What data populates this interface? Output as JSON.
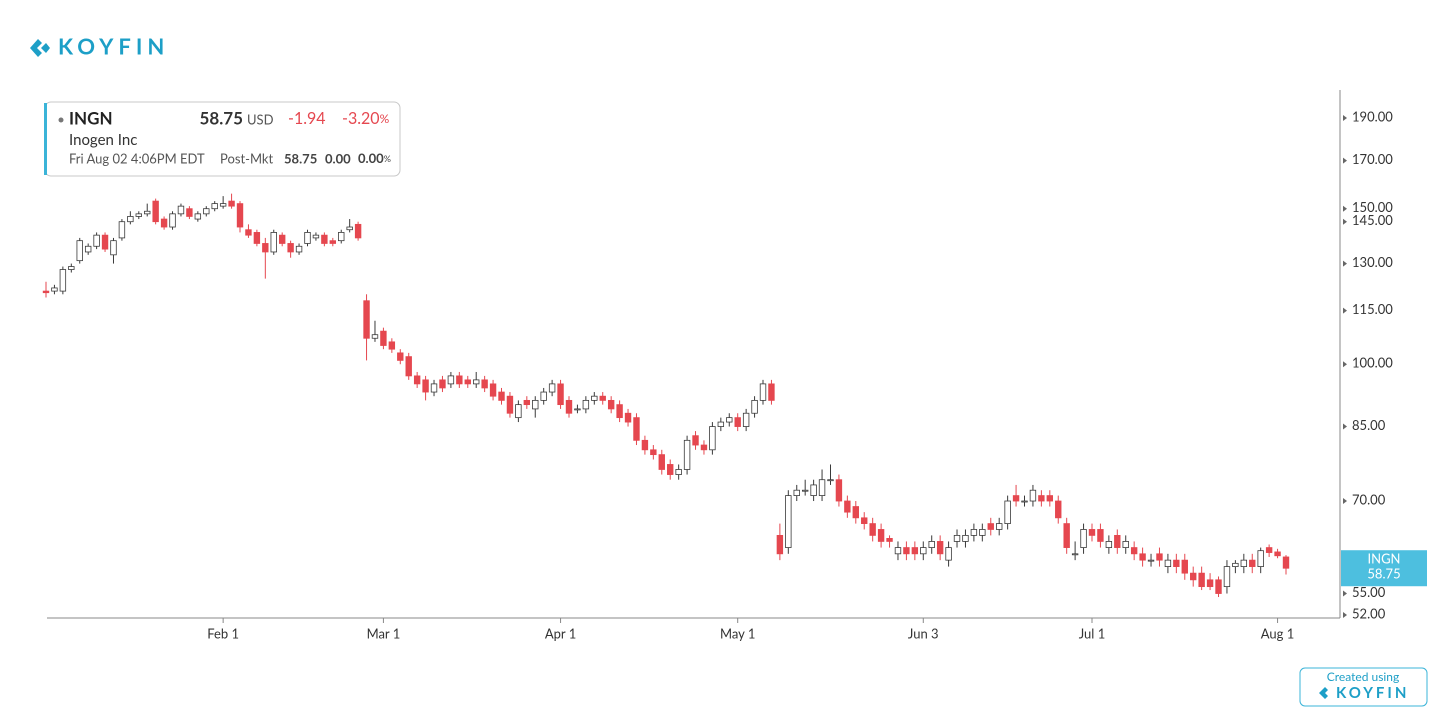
{
  "header": {
    "logo": "KOYFIN",
    "ticker": "INGN",
    "price": "58.75",
    "currency": "USD",
    "change": "-1.94",
    "change_pct": "-3.20",
    "pct": "%",
    "name": "Inogen Inc",
    "timestamp": "Fri Aug 02 4:06PM EDT",
    "session": "Post-Mkt",
    "post_price": "58.75",
    "post_change": "0.00",
    "post_pct": "0.00"
  },
  "footer": {
    "created": "Created using",
    "logo": "KOYFIN"
  },
  "chart_data": {
    "type": "candlestick",
    "log_scale": true,
    "up_color": "#ffffff",
    "down_color": "#e5474f",
    "outline_color": "#3a3a3a",
    "tag_color": "#4dbfdf",
    "categories": [
      null,
      null,
      null,
      null,
      null,
      null,
      null,
      null,
      null,
      null,
      null,
      null,
      null,
      null,
      null,
      null,
      null,
      null,
      null,
      null,
      null,
      "Feb 1",
      null,
      null,
      null,
      null,
      null,
      null,
      null,
      null,
      null,
      null,
      null,
      null,
      null,
      null,
      null,
      null,
      null,
      null,
      "Mar 1",
      null,
      null,
      null,
      null,
      null,
      null,
      null,
      null,
      null,
      null,
      null,
      null,
      null,
      null,
      null,
      null,
      null,
      null,
      null,
      null,
      "Apr 1",
      null,
      null,
      null,
      null,
      null,
      null,
      null,
      null,
      null,
      null,
      null,
      null,
      null,
      null,
      null,
      null,
      null,
      null,
      null,
      null,
      "May 1",
      null,
      null,
      null,
      null,
      null,
      null,
      null,
      null,
      null,
      null,
      null,
      null,
      null,
      null,
      null,
      null,
      null,
      null,
      null,
      null,
      null,
      "Jun 3",
      null,
      null,
      null,
      null,
      null,
      null,
      null,
      null,
      null,
      null,
      null,
      null,
      null,
      null,
      null,
      null,
      null,
      null,
      null,
      "Jul 1",
      null,
      null,
      null,
      null,
      null,
      null,
      null,
      null,
      null,
      null,
      null,
      null,
      null,
      null,
      null,
      null,
      null,
      null,
      null,
      null,
      null,
      "Aug 1",
      null
    ],
    "open": [
      121,
      121,
      121,
      128,
      131,
      134,
      136,
      140,
      133,
      139,
      145,
      147,
      148,
      153,
      146,
      143,
      148,
      150,
      146,
      148,
      150,
      151,
      153,
      152,
      142,
      141,
      137,
      134,
      140,
      137,
      134,
      137,
      139,
      140,
      138,
      138,
      142,
      144,
      118,
      107,
      109,
      106,
      103,
      102,
      97,
      96,
      93,
      96,
      95,
      97,
      96,
      95,
      96,
      95,
      93,
      92,
      87,
      91,
      89,
      91,
      93,
      95,
      91,
      89,
      89,
      91,
      92,
      91,
      90,
      88,
      87,
      82,
      80,
      79,
      77,
      75,
      76,
      83,
      81,
      80,
      85,
      86,
      87,
      85,
      88,
      91,
      95,
      64,
      62,
      71,
      72,
      71,
      71,
      74,
      74,
      70,
      69,
      67,
      66,
      65,
      63.5,
      61,
      62,
      62,
      61,
      62,
      63,
      60,
      63,
      63,
      64,
      64,
      66,
      65,
      66,
      71,
      70,
      70,
      71,
      71,
      70,
      66,
      61,
      62,
      65,
      65,
      62,
      64,
      62,
      62,
      61,
      60,
      61,
      59,
      60,
      60,
      58,
      58,
      57,
      57,
      56,
      59,
      59,
      60,
      59,
      62,
      61.3,
      60.5
    ],
    "high": [
      124,
      123,
      129,
      130,
      139,
      137,
      141,
      141,
      139,
      146,
      149,
      149,
      152,
      154,
      147,
      149,
      152,
      151,
      149,
      151,
      153,
      155,
      156,
      153,
      144,
      142,
      139,
      142,
      141,
      138,
      137,
      142,
      141,
      141,
      139,
      142,
      146,
      145,
      120,
      112,
      110,
      107,
      104,
      103,
      98,
      97,
      96,
      97,
      98,
      98,
      97,
      98,
      97,
      96,
      94,
      93,
      91,
      92,
      92,
      94,
      96,
      96,
      92,
      90,
      92,
      93,
      93,
      92,
      91,
      89,
      88,
      83,
      81,
      80,
      78,
      77,
      83,
      84,
      82,
      86,
      87,
      88,
      88,
      89,
      92,
      96,
      96,
      66,
      72,
      73,
      74,
      74,
      76,
      77,
      75,
      71,
      70,
      68,
      67,
      66,
      64,
      63,
      63,
      63,
      63,
      64,
      64,
      63,
      65,
      65,
      66,
      66,
      67,
      67,
      71,
      73,
      71,
      73,
      72,
      72,
      71,
      67,
      63,
      66,
      66,
      66,
      64,
      65,
      64,
      63,
      62,
      61,
      62,
      61,
      61,
      61,
      59,
      59,
      58,
      57.5,
      60,
      60,
      61,
      61,
      62,
      62.5,
      61.8,
      60.8
    ],
    "low": [
      119,
      120,
      120,
      127,
      130,
      133,
      135,
      134,
      130,
      138,
      144,
      146,
      147,
      144,
      142,
      142,
      147,
      146,
      145,
      147,
      149,
      150,
      150,
      141,
      139,
      136,
      125,
      133,
      136,
      132,
      133,
      136,
      138,
      136,
      136,
      137,
      141,
      138,
      101,
      106,
      104,
      103,
      100,
      96,
      94,
      91,
      92,
      93,
      94,
      94,
      94,
      94,
      93,
      91,
      90,
      87,
      86,
      89,
      87,
      90,
      92,
      89,
      87,
      88,
      88,
      90,
      90,
      88,
      86,
      85,
      81,
      79,
      78,
      75,
      74,
      74,
      75,
      80,
      79,
      79,
      84,
      85,
      84,
      84,
      87,
      90,
      90,
      60,
      61,
      70,
      71,
      70,
      70,
      73,
      69,
      67,
      66,
      65,
      63,
      62,
      62,
      60,
      60,
      60,
      60,
      61,
      60,
      59,
      62,
      62,
      63,
      63,
      64,
      64,
      65,
      69,
      69,
      69,
      69,
      69,
      66,
      61,
      60,
      61,
      63,
      62,
      61,
      61,
      61,
      60,
      59,
      59,
      59,
      58,
      58,
      57,
      56,
      55.5,
      55.5,
      54.5,
      55,
      58,
      58,
      58,
      58,
      60.5,
      60.3,
      57.8
    ],
    "close": [
      120.5,
      122,
      128,
      129,
      138,
      136,
      140,
      135,
      138,
      145,
      147,
      148,
      149,
      145,
      143,
      148,
      151,
      147,
      148,
      150,
      152,
      152,
      151,
      143,
      140,
      137,
      134,
      141,
      137,
      134,
      136,
      141,
      140,
      137,
      137,
      141,
      143,
      139,
      107,
      108,
      105,
      104,
      101,
      97,
      95,
      93,
      95,
      94,
      97,
      95,
      95,
      96,
      94,
      92,
      91,
      88,
      90,
      90,
      91,
      93,
      95,
      90,
      88,
      89,
      91,
      92,
      91,
      89,
      87,
      86,
      82,
      80,
      79,
      76,
      75,
      76,
      82,
      81,
      80,
      85,
      86,
      87,
      85,
      88,
      91,
      95,
      91,
      61,
      71,
      72,
      72,
      73,
      74,
      74,
      70,
      68,
      67,
      66,
      64,
      63,
      63,
      62,
      61,
      61,
      62,
      63,
      61,
      62,
      64,
      64,
      65,
      65,
      65,
      66,
      70,
      70,
      70,
      72,
      70,
      70,
      67,
      62,
      61,
      65,
      64,
      63,
      63,
      62,
      63,
      61,
      60,
      60,
      60,
      60,
      59,
      58,
      57,
      56,
      56,
      55,
      59,
      59.5,
      60,
      59,
      61.5,
      61.2,
      60.69,
      58.75
    ],
    "ylim": [
      51.6,
      204.4
    ],
    "yticks": [
      {
        "value": 190,
        "label": "190.00"
      },
      {
        "value": 170,
        "label": "170.00"
      },
      {
        "value": 150,
        "label": "150.00"
      },
      {
        "value": 145,
        "label": "145.00"
      },
      {
        "value": 130,
        "label": "130.00"
      },
      {
        "value": 115,
        "label": "115.00"
      },
      {
        "value": 100,
        "label": "100.00"
      },
      {
        "value": 85,
        "label": "85.00"
      },
      {
        "value": 70,
        "label": "70.00"
      },
      {
        "value": 55,
        "label": "55.00"
      },
      {
        "value": 52,
        "label": "52.00"
      }
    ]
  }
}
